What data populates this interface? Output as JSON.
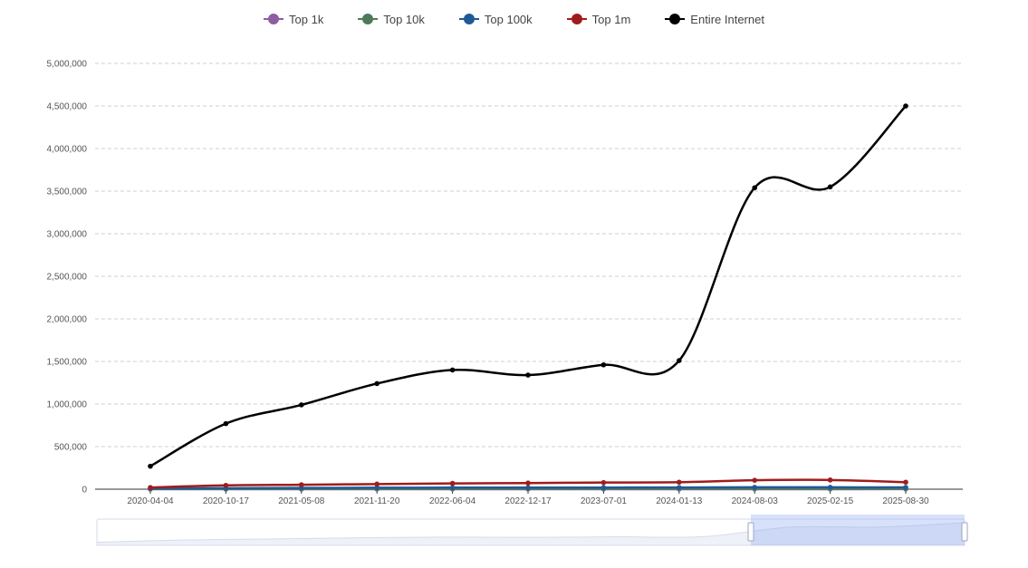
{
  "chart_data": {
    "type": "line",
    "title": "",
    "xlabel": "",
    "ylabel": "",
    "x_tick_labels": [
      "2020-04-04",
      "2020-10-17",
      "2021-05-08",
      "2021-11-20",
      "2022-06-04",
      "2022-12-17",
      "2023-07-01",
      "2024-01-13",
      "2024-08-03",
      "2025-02-15",
      "2025-08-30"
    ],
    "y_tick_labels": [
      "0",
      "500,000",
      "1,000,000",
      "1,500,000",
      "2,000,000",
      "2,500,000",
      "3,000,000",
      "3,500,000",
      "4,000,000",
      "4,500,000",
      "5,000,000"
    ],
    "ylim": [
      0,
      5000000
    ],
    "grid": true,
    "legend_position": "top-center",
    "x": [
      "2020-04-04",
      "2020-10-17",
      "2021-05-08",
      "2021-11-20",
      "2022-06-04",
      "2022-12-17",
      "2023-07-01",
      "2024-01-13",
      "2024-08-03",
      "2025-02-15",
      "2025-08-30"
    ],
    "series": [
      {
        "name": "Top 1k",
        "color": "#8e5ea2",
        "values": [
          200,
          300,
          400,
          500,
          500,
          500,
          550,
          600,
          650,
          650,
          700
        ]
      },
      {
        "name": "Top 10k",
        "color": "#4e7a5a",
        "values": [
          2000,
          3000,
          3500,
          4000,
          4500,
          4500,
          5000,
          5000,
          5500,
          5500,
          5500
        ]
      },
      {
        "name": "Top 100k",
        "color": "#1f5a96",
        "values": [
          8000,
          12000,
          15000,
          17000,
          18000,
          18000,
          19000,
          20000,
          22000,
          22000,
          21000
        ]
      },
      {
        "name": "Top 1m",
        "color": "#a01c1c",
        "values": [
          20000,
          45000,
          52000,
          60000,
          68000,
          72000,
          78000,
          82000,
          105000,
          108000,
          82000
        ]
      },
      {
        "name": "Entire Internet",
        "color": "#000000",
        "values": [
          270000,
          770000,
          990000,
          1240000,
          1400000,
          1340000,
          1460000,
          1510000,
          3540000,
          3550000,
          4500000
        ]
      }
    ]
  }
}
